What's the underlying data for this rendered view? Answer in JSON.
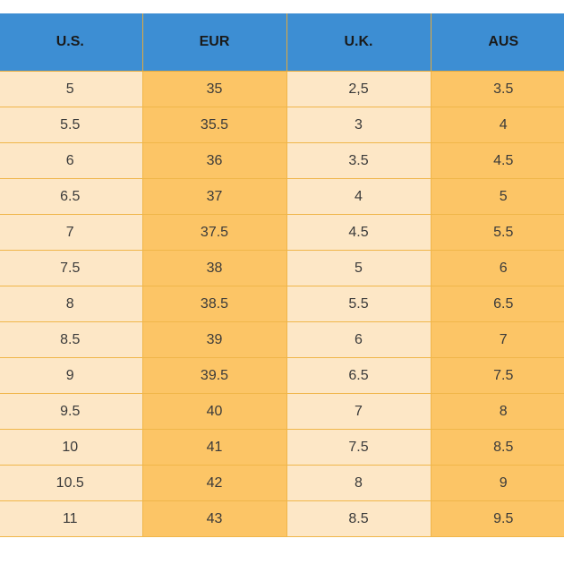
{
  "table": {
    "headers": [
      "U.S.",
      "EUR",
      "U.K.",
      "AUS"
    ],
    "rows": [
      [
        "5",
        "35",
        "2,5",
        "3.5"
      ],
      [
        "5.5",
        "35.5",
        "3",
        "4"
      ],
      [
        "6",
        "36",
        "3.5",
        "4.5"
      ],
      [
        "6.5",
        "37",
        "4",
        "5"
      ],
      [
        "7",
        "37.5",
        "4.5",
        "5.5"
      ],
      [
        "7.5",
        "38",
        "5",
        "6"
      ],
      [
        "8",
        "38.5",
        "5.5",
        "6.5"
      ],
      [
        "8.5",
        "39",
        "6",
        "7"
      ],
      [
        "9",
        "39.5",
        "6.5",
        "7.5"
      ],
      [
        "9.5",
        "40",
        "7",
        "8"
      ],
      [
        "10",
        "41",
        "7.5",
        "8.5"
      ],
      [
        "10.5",
        "42",
        "8",
        "9"
      ],
      [
        "11",
        "43",
        "8.5",
        "9.5"
      ]
    ]
  },
  "colors": {
    "header_bg": "#3d8ed3",
    "light_column_bg": "#fde7c6",
    "dark_column_bg": "#fcc566",
    "grid_line": "#f0b64a"
  }
}
